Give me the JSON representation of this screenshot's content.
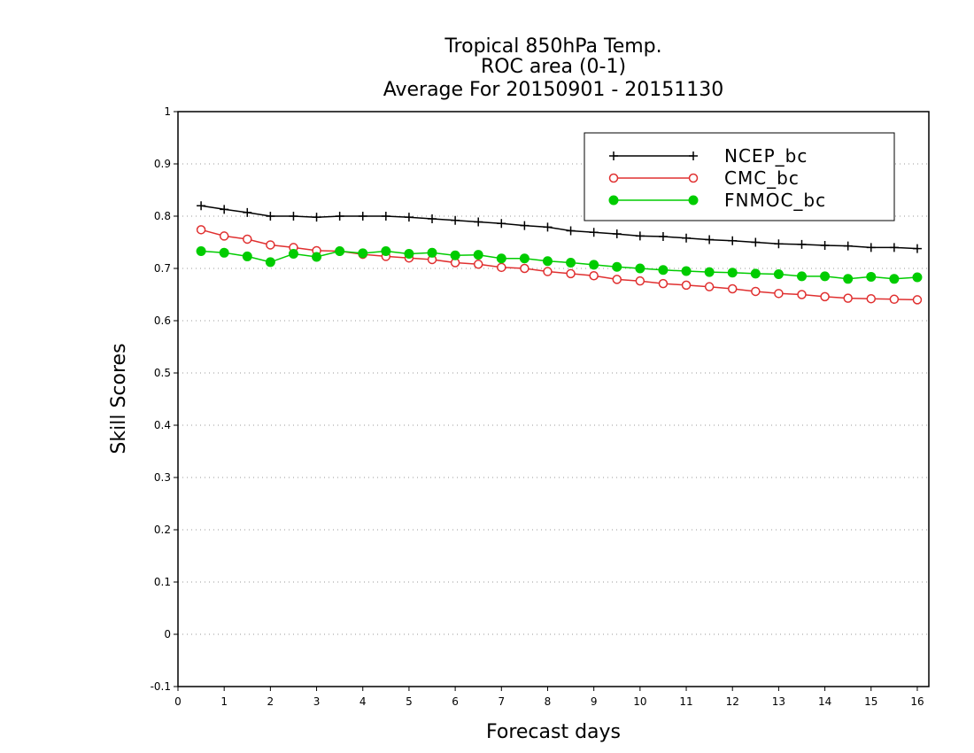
{
  "chart_data": {
    "type": "line",
    "title_lines": [
      "Tropical 850hPa Temp.",
      "ROC area (0-1)",
      "Average For 20150901 - 20151130"
    ],
    "xlabel": "Forecast days",
    "ylabel": "Skill Scores",
    "xlim": [
      0,
      16.25
    ],
    "ylim": [
      -0.1,
      1
    ],
    "x_ticks": [
      0,
      1,
      2,
      3,
      4,
      5,
      6,
      7,
      8,
      9,
      10,
      11,
      12,
      13,
      14,
      15,
      16
    ],
    "y_ticks": [
      -0.1,
      0,
      0.1,
      0.2,
      0.3,
      0.4,
      0.5,
      0.6,
      0.7,
      0.8,
      0.9,
      1
    ],
    "y_tick_labels": [
      "-0.1",
      "0",
      "0.1",
      "0.2",
      "0.3",
      "0.4",
      "0.5",
      "0.6",
      "0.7",
      "0.8",
      "0.9",
      "1"
    ],
    "grid": "horizontal dotted",
    "legend_position": "top-right",
    "x": [
      0.5,
      1,
      1.5,
      2,
      2.5,
      3,
      3.5,
      4,
      4.5,
      5,
      5.5,
      6,
      6.5,
      7,
      7.5,
      8,
      8.5,
      9,
      9.5,
      10,
      10.5,
      11,
      11.5,
      12,
      12.5,
      13,
      13.5,
      14,
      14.5,
      15,
      15.5,
      16
    ],
    "series": [
      {
        "name": "NCEP_bc",
        "color": "#000000",
        "marker": "plus",
        "values": [
          0.82,
          0.813,
          0.807,
          0.8,
          0.8,
          0.798,
          0.8,
          0.8,
          0.8,
          0.798,
          0.795,
          0.792,
          0.789,
          0.786,
          0.782,
          0.779,
          0.772,
          0.769,
          0.766,
          0.762,
          0.761,
          0.758,
          0.755,
          0.753,
          0.75,
          0.747,
          0.746,
          0.744,
          0.743,
          0.74,
          0.74,
          0.738
        ]
      },
      {
        "name": "CMC_bc",
        "color": "#e03030",
        "marker": "open-circle",
        "values": [
          0.774,
          0.762,
          0.756,
          0.745,
          0.74,
          0.734,
          0.733,
          0.727,
          0.723,
          0.72,
          0.717,
          0.711,
          0.708,
          0.702,
          0.7,
          0.694,
          0.69,
          0.686,
          0.679,
          0.676,
          0.671,
          0.668,
          0.665,
          0.661,
          0.656,
          0.652,
          0.65,
          0.646,
          0.643,
          0.642,
          0.641,
          0.64
        ]
      },
      {
        "name": "FNMOC_bc",
        "color": "#00cc00",
        "marker": "filled-circle",
        "values": [
          0.733,
          0.73,
          0.723,
          0.712,
          0.728,
          0.722,
          0.733,
          0.729,
          0.733,
          0.728,
          0.73,
          0.725,
          0.726,
          0.719,
          0.719,
          0.714,
          0.711,
          0.707,
          0.703,
          0.7,
          0.697,
          0.695,
          0.693,
          0.692,
          0.69,
          0.689,
          0.685,
          0.685,
          0.68,
          0.684,
          0.68,
          0.683
        ]
      }
    ]
  }
}
